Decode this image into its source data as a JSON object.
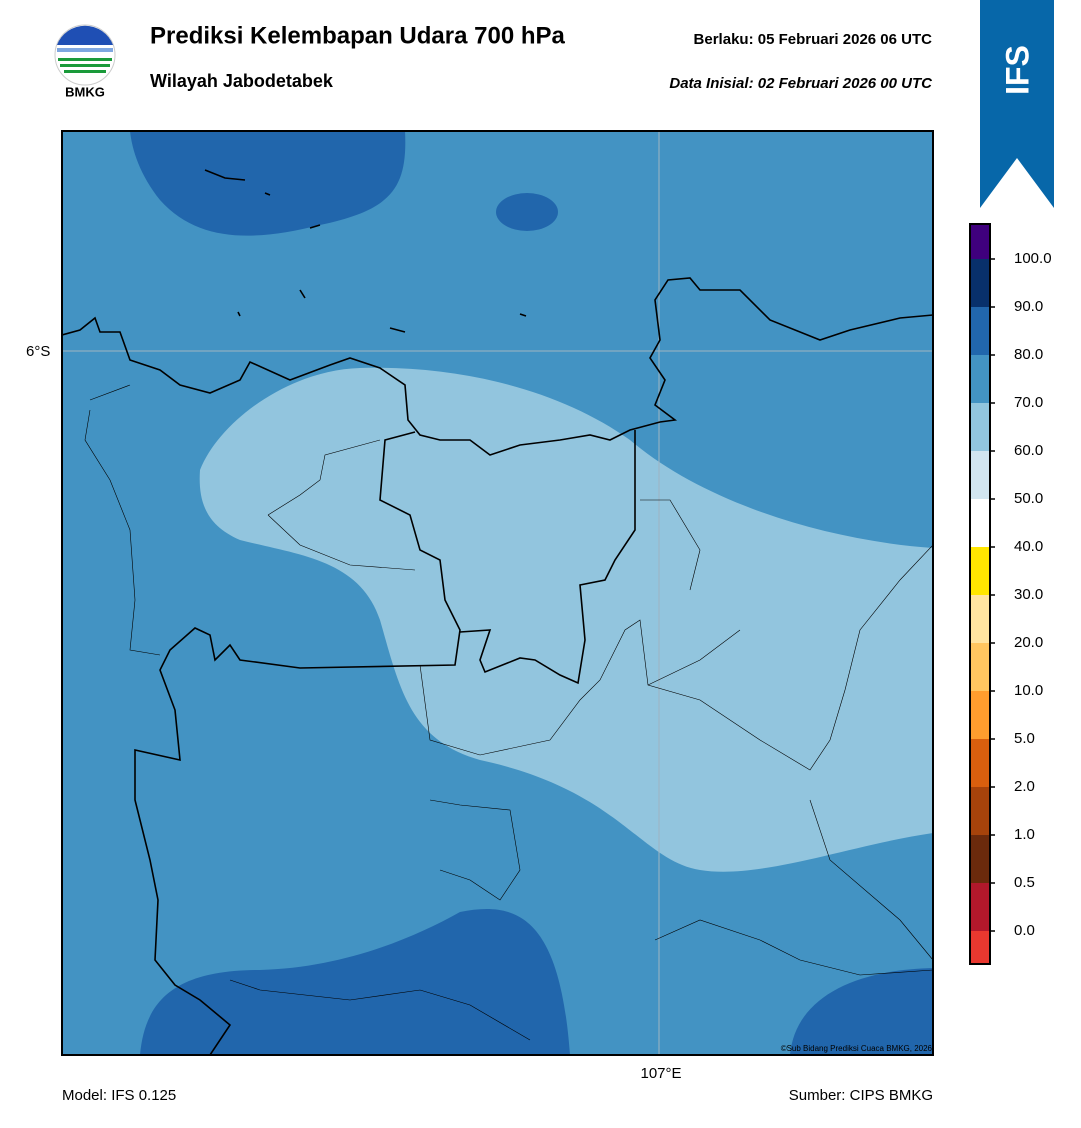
{
  "header": {
    "logo_text": "BMKG",
    "title": "Prediksi Kelembapan Udara 700 hPa",
    "subtitle": "Wilayah Jabodetabek",
    "valid": "Berlaku:  05 Februari 2026 06 UTC",
    "init": "Data Inisial:  02 Februari 2026 00 UTC"
  },
  "banner": {
    "text": "IFS"
  },
  "map": {
    "lat_label": "6°S",
    "lon_label": "107°E",
    "credit": "©Sub Bidang Prediksi Cuaca BMKG, 2026"
  },
  "colorbar": {
    "colors": [
      "#3f007d",
      "#08306b",
      "#2166ac",
      "#4393c3",
      "#92c5de",
      "#d1e5f0",
      "#ffffff",
      "#ffe600",
      "#ffe4a0",
      "#ffc660",
      "#ff9d2e",
      "#d95f0e",
      "#a6430b",
      "#6b2a0c",
      "#b2182b",
      "#e8382f"
    ],
    "labels": [
      "100.0",
      "90.0",
      "80.0",
      "70.0",
      "60.0",
      "50.0",
      "40.0",
      "30.0",
      "20.0",
      "10.0",
      "5.0",
      "2.0",
      "1.0",
      "0.5",
      "0.0"
    ]
  },
  "footer": {
    "model": "Model: IFS 0.125",
    "source": "Sumber: CIPS BMKG"
  }
}
